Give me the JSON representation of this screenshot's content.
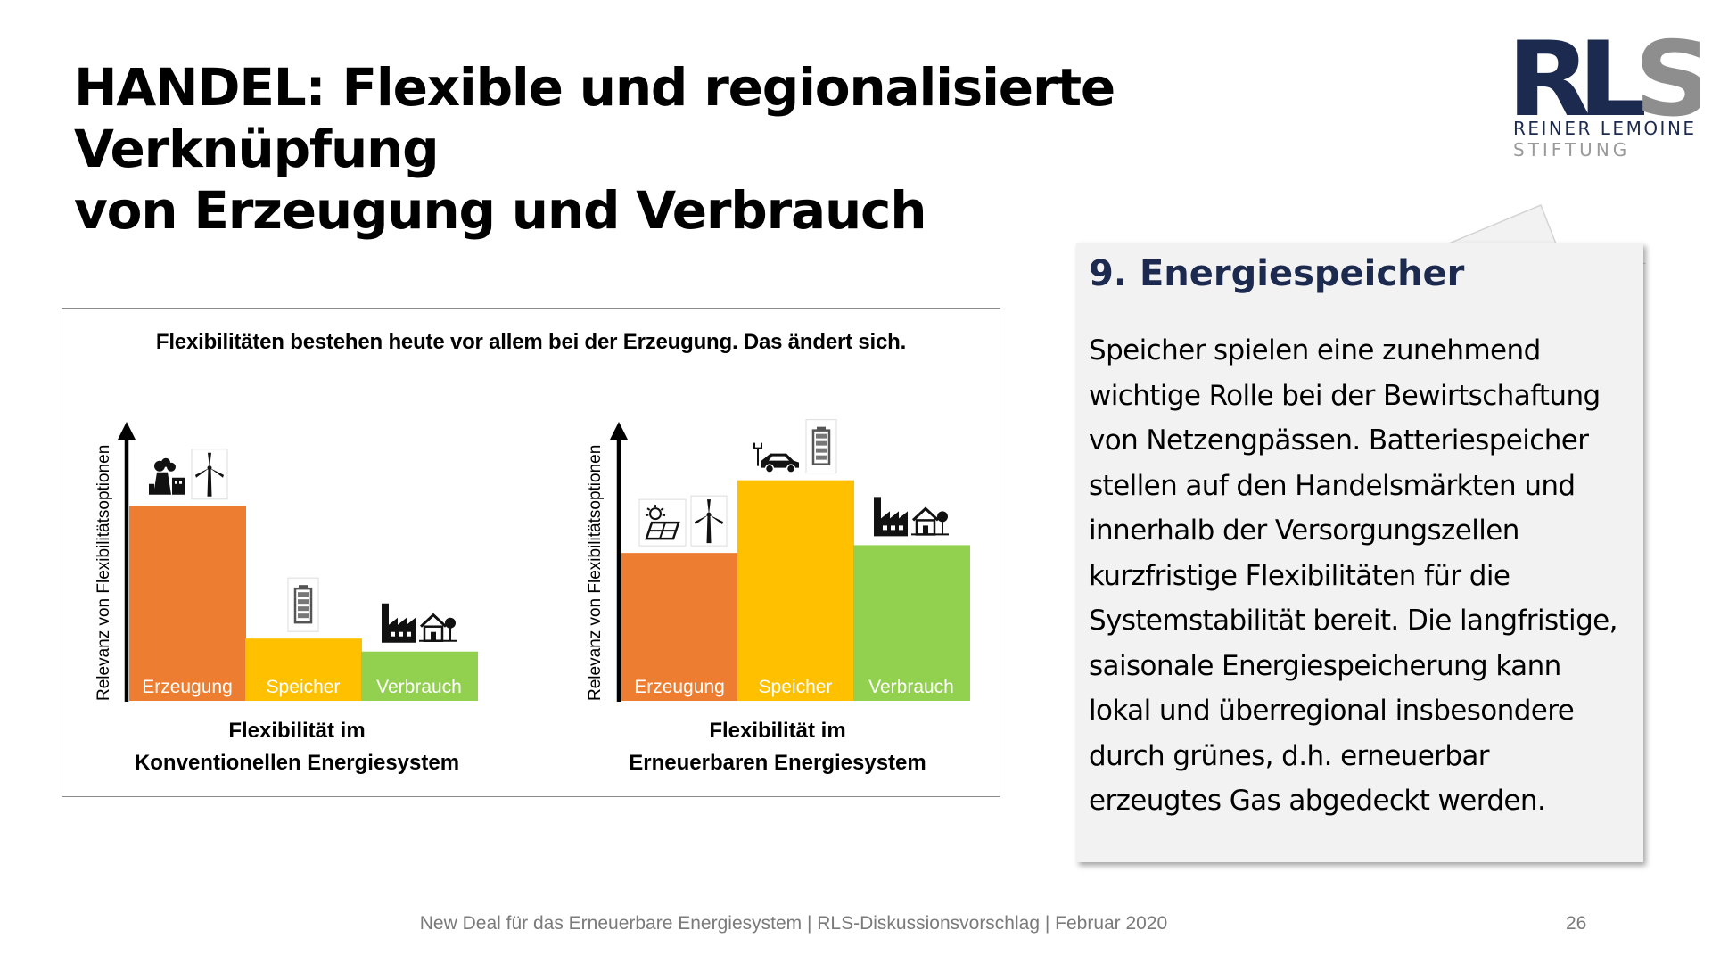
{
  "slide": {
    "title_line1": "HANDEL: Flexible und regionalisierte Verknüpfung",
    "title_line2": "von Erzeugung und Verbrauch",
    "footer": "New Deal für das Erneuerbare Energiesystem | RLS-Diskussionsvorschlag | Februar 2020",
    "page_number": "26"
  },
  "logo": {
    "mark": "RLS",
    "line1": "REINER LEMOINE",
    "line2": "STIFTUNG",
    "colors": {
      "dark": "#1d2a4f",
      "light": "#8e8e8e"
    }
  },
  "card": {
    "title": "9. Energiespeicher",
    "body_lines": [
      "Speicher spielen eine zunehmend",
      "wichtige Rolle bei der Bewirtschaftung",
      "von Netzengpässen. Batteriespeicher",
      "stellen auf den Handelsmärkten und",
      "innerhalb der Versorgungszellen",
      "kurzfristige Flexibilitäten für die",
      "Systemstabilität bereit. Die langfristige,",
      "saisonale Energiespeicherung kann",
      "lokal und überregional insbesondere",
      "durch grünes, d.h. erneuerbar",
      "erzeugtes Gas abgedeckt werden."
    ],
    "title_color": "#1d2a4f",
    "background": "#f2f2f2"
  },
  "chart_data": [
    {
      "type": "bar",
      "title": "Flexibilitäten bestehen heute vor allem bei der Erzeugung. Das ändert sich.",
      "subtitle_line1": "Flexibilität im",
      "subtitle_line2": "Konventionellen Energiesystem",
      "ylabel": "Relevanz von Flexibilitätsoptionen",
      "categories": [
        "Erzeugung",
        "Speicher",
        "Verbrauch"
      ],
      "values": [
        75,
        24,
        19
      ],
      "ylim": [
        0,
        100
      ],
      "colors": [
        "#ed7d31",
        "#ffc000",
        "#92d050"
      ],
      "icons": [
        [
          "power-plant-icon",
          "wind-turbine-icon"
        ],
        [
          "battery-icon"
        ],
        [
          "factory-icon",
          "house-icon"
        ]
      ]
    },
    {
      "type": "bar",
      "subtitle_line1": "Flexibilität im",
      "subtitle_line2": "Erneuerbaren Energiesystem",
      "ylabel": "Relevanz von Flexibilitätsoptionen",
      "categories": [
        "Erzeugung",
        "Speicher",
        "Verbrauch"
      ],
      "values": [
        57,
        85,
        60
      ],
      "ylim": [
        0,
        100
      ],
      "colors": [
        "#ed7d31",
        "#ffc000",
        "#92d050"
      ],
      "icons": [
        [
          "solar-panel-icon",
          "wind-turbine-icon"
        ],
        [
          "electric-car-icon",
          "battery-icon"
        ],
        [
          "factory-icon",
          "house-icon"
        ]
      ]
    }
  ]
}
